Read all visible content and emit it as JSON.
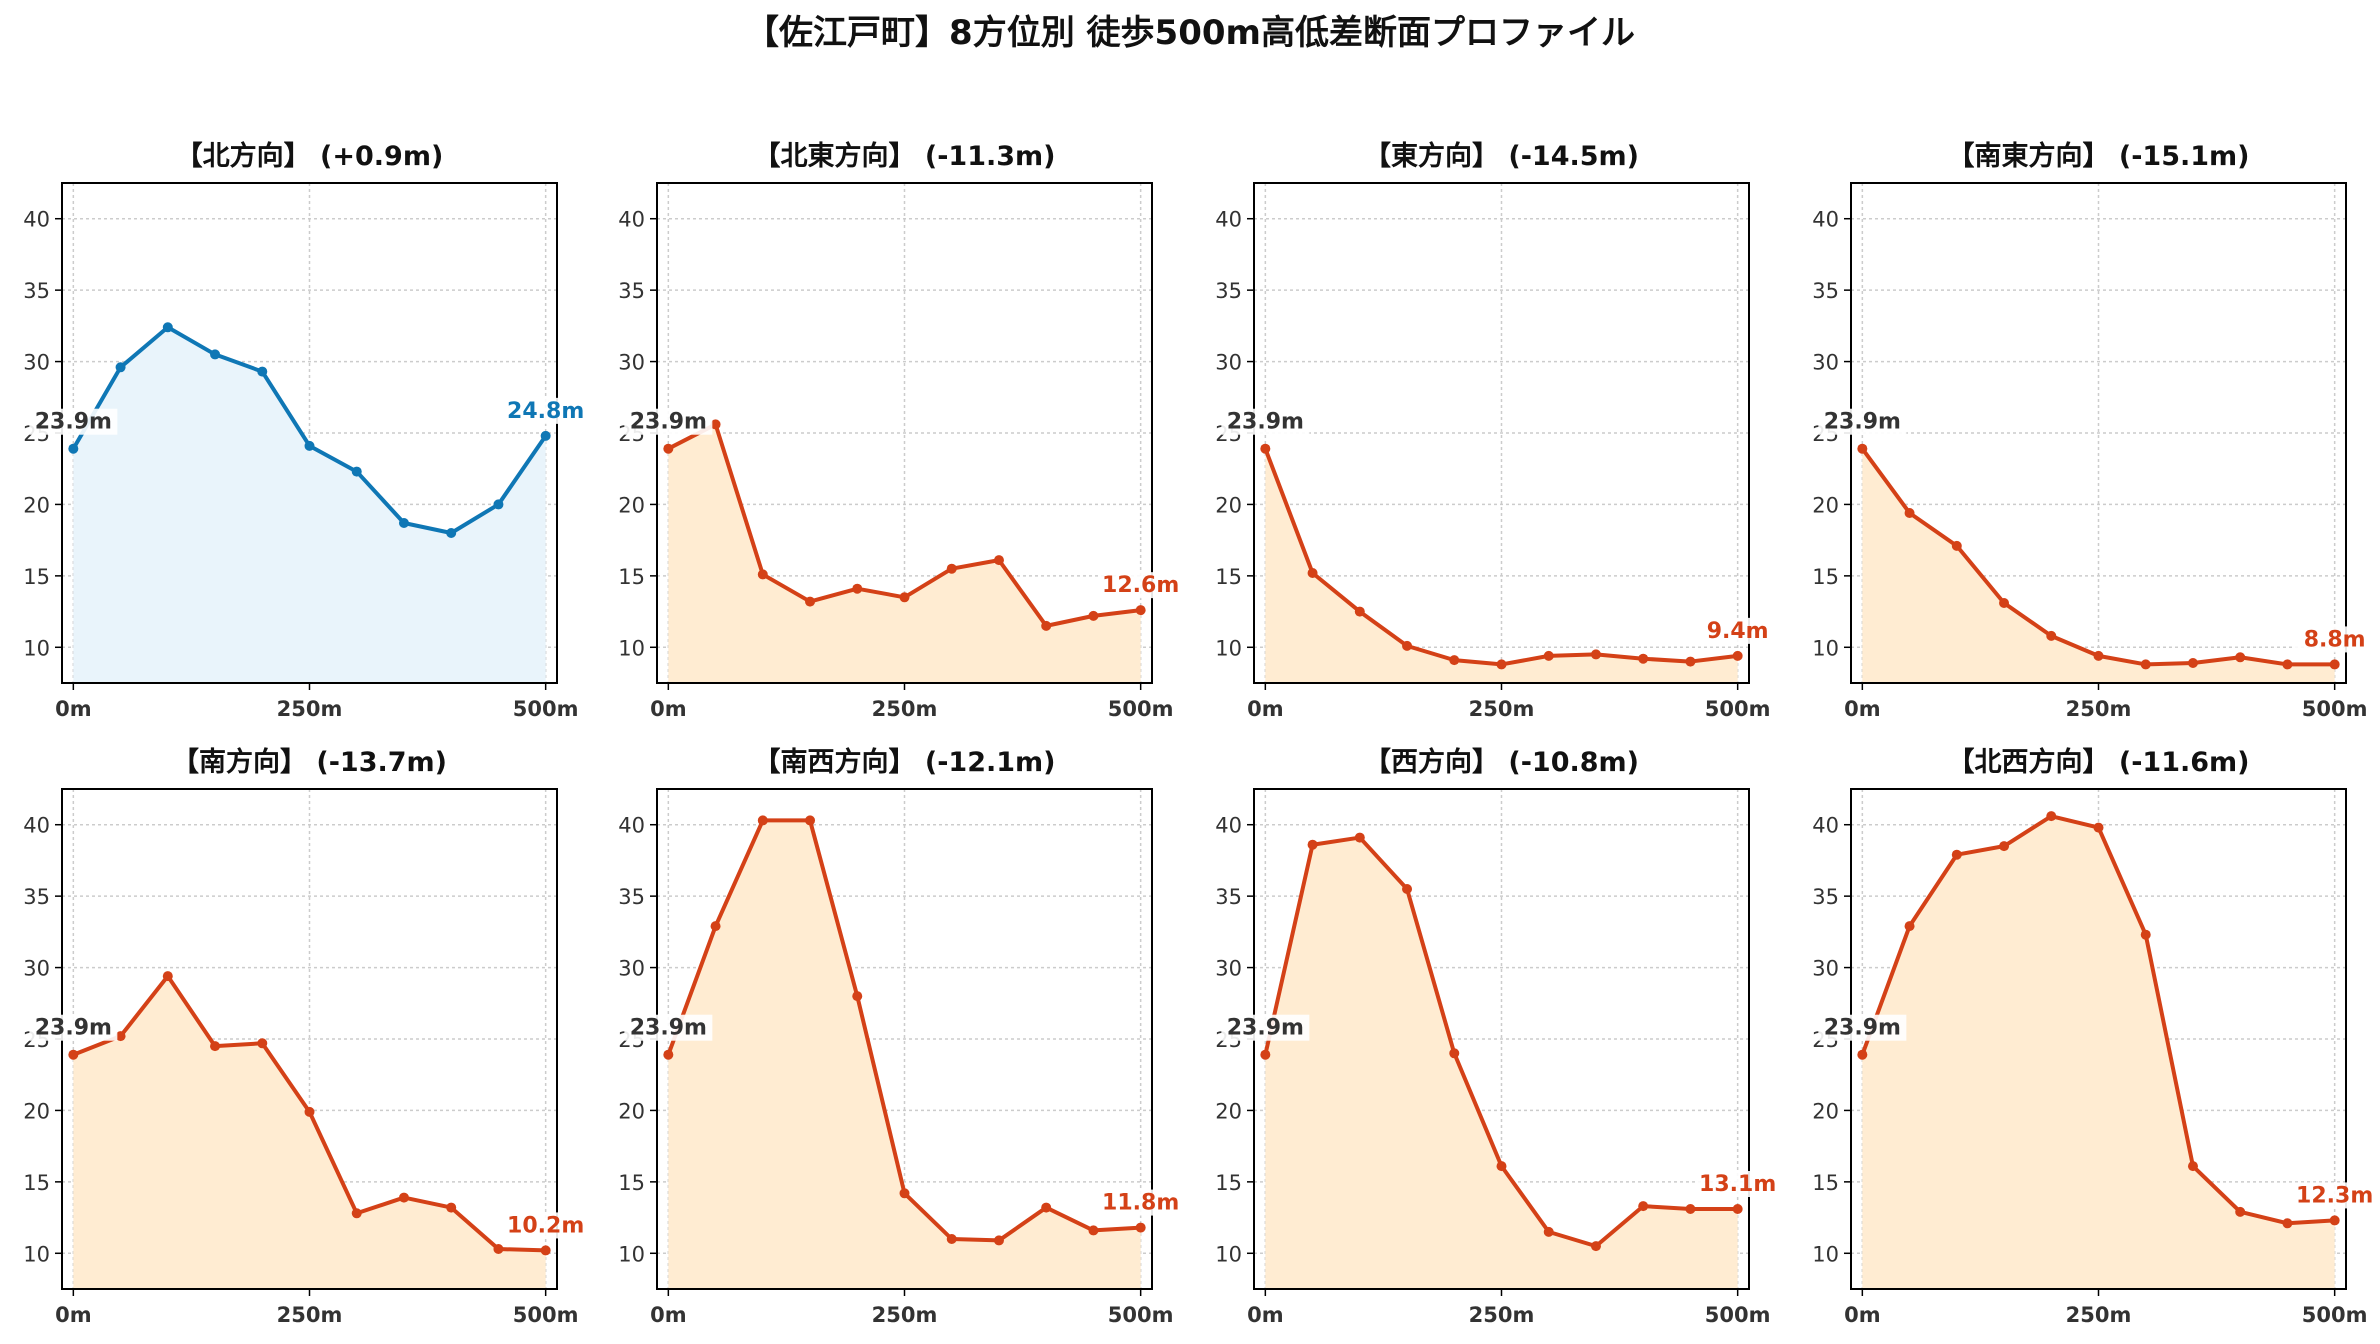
{
  "figure": {
    "title": "【佐江戸町】8方位別 徒歩500m高低差断面プロファイル"
  },
  "colors": {
    "up_line": "#0f77b5",
    "up_fill": "#e9f4fb",
    "down_line": "#d44117",
    "down_fill": "#ffecd2",
    "start_label": "#333333",
    "grid": "#cccccc",
    "tick_text": "#333333",
    "axis": "#000000"
  },
  "chart_data": [
    {
      "type": "area",
      "title": "【北方向】 (+0.9m)",
      "trend": "up",
      "x": [
        0,
        50,
        100,
        150,
        200,
        250,
        300,
        350,
        400,
        450,
        500
      ],
      "values": [
        23.9,
        29.6,
        32.4,
        30.5,
        29.3,
        24.1,
        22.3,
        18.7,
        18.0,
        20.0,
        24.8
      ],
      "start_label": "23.9m",
      "end_label": "24.8m",
      "xticks": [
        0,
        250,
        500
      ],
      "xtick_labels": [
        "0m",
        "250m",
        "500m"
      ],
      "yticks": [
        10,
        15,
        20,
        25,
        30,
        35,
        40
      ],
      "ylim": [
        7.5,
        42.5
      ],
      "xlim": [
        -12,
        512
      ],
      "grid": true
    },
    {
      "type": "area",
      "title": "【北東方向】 (-11.3m)",
      "trend": "down",
      "x": [
        0,
        50,
        100,
        150,
        200,
        250,
        300,
        350,
        400,
        450,
        500
      ],
      "values": [
        23.9,
        25.6,
        15.1,
        13.2,
        14.1,
        13.5,
        15.5,
        16.1,
        11.5,
        12.2,
        12.6
      ],
      "start_label": "23.9m",
      "end_label": "12.6m",
      "xticks": [
        0,
        250,
        500
      ],
      "xtick_labels": [
        "0m",
        "250m",
        "500m"
      ],
      "yticks": [
        10,
        15,
        20,
        25,
        30,
        35,
        40
      ],
      "ylim": [
        7.5,
        42.5
      ],
      "xlim": [
        -12,
        512
      ],
      "grid": true
    },
    {
      "type": "area",
      "title": "【東方向】 (-14.5m)",
      "trend": "down",
      "x": [
        0,
        50,
        100,
        150,
        200,
        250,
        300,
        350,
        400,
        450,
        500
      ],
      "values": [
        23.9,
        15.2,
        12.5,
        10.1,
        9.1,
        8.8,
        9.4,
        9.5,
        9.2,
        9.0,
        9.4
      ],
      "start_label": "23.9m",
      "end_label": "9.4m",
      "xticks": [
        0,
        250,
        500
      ],
      "xtick_labels": [
        "0m",
        "250m",
        "500m"
      ],
      "yticks": [
        10,
        15,
        20,
        25,
        30,
        35,
        40
      ],
      "ylim": [
        7.5,
        42.5
      ],
      "xlim": [
        -12,
        512
      ],
      "grid": true
    },
    {
      "type": "area",
      "title": "【南東方向】 (-15.1m)",
      "trend": "down",
      "x": [
        0,
        50,
        100,
        150,
        200,
        250,
        300,
        350,
        400,
        450,
        500
      ],
      "values": [
        23.9,
        19.4,
        17.1,
        13.1,
        10.8,
        9.4,
        8.8,
        8.9,
        9.3,
        8.8,
        8.8
      ],
      "start_label": "23.9m",
      "end_label": "8.8m",
      "xticks": [
        0,
        250,
        500
      ],
      "xtick_labels": [
        "0m",
        "250m",
        "500m"
      ],
      "yticks": [
        10,
        15,
        20,
        25,
        30,
        35,
        40
      ],
      "ylim": [
        7.5,
        42.5
      ],
      "xlim": [
        -12,
        512
      ],
      "grid": true
    },
    {
      "type": "area",
      "title": "【南方向】 (-13.7m)",
      "trend": "down",
      "x": [
        0,
        50,
        100,
        150,
        200,
        250,
        300,
        350,
        400,
        450,
        500
      ],
      "values": [
        23.9,
        25.2,
        29.4,
        24.5,
        24.7,
        19.9,
        12.8,
        13.9,
        13.2,
        10.3,
        10.2
      ],
      "start_label": "23.9m",
      "end_label": "10.2m",
      "xticks": [
        0,
        250,
        500
      ],
      "xtick_labels": [
        "0m",
        "250m",
        "500m"
      ],
      "yticks": [
        10,
        15,
        20,
        25,
        30,
        35,
        40
      ],
      "ylim": [
        7.5,
        42.5
      ],
      "xlim": [
        -12,
        512
      ],
      "grid": true
    },
    {
      "type": "area",
      "title": "【南西方向】 (-12.1m)",
      "trend": "down",
      "x": [
        0,
        50,
        100,
        150,
        200,
        250,
        300,
        350,
        400,
        450,
        500
      ],
      "values": [
        23.9,
        32.9,
        40.3,
        40.3,
        28.0,
        14.2,
        11.0,
        10.9,
        13.2,
        11.6,
        11.8
      ],
      "start_label": "23.9m",
      "end_label": "11.8m",
      "xticks": [
        0,
        250,
        500
      ],
      "xtick_labels": [
        "0m",
        "250m",
        "500m"
      ],
      "yticks": [
        10,
        15,
        20,
        25,
        30,
        35,
        40
      ],
      "ylim": [
        7.5,
        42.5
      ],
      "xlim": [
        -12,
        512
      ],
      "grid": true
    },
    {
      "type": "area",
      "title": "【西方向】 (-10.8m)",
      "trend": "down",
      "x": [
        0,
        50,
        100,
        150,
        200,
        250,
        300,
        350,
        400,
        450,
        500
      ],
      "values": [
        23.9,
        38.6,
        39.1,
        35.5,
        24.0,
        16.1,
        11.5,
        10.5,
        13.3,
        13.1,
        13.1
      ],
      "start_label": "23.9m",
      "end_label": "13.1m",
      "xticks": [
        0,
        250,
        500
      ],
      "xtick_labels": [
        "0m",
        "250m",
        "500m"
      ],
      "yticks": [
        10,
        15,
        20,
        25,
        30,
        35,
        40
      ],
      "ylim": [
        7.5,
        42.5
      ],
      "xlim": [
        -12,
        512
      ],
      "grid": true
    },
    {
      "type": "area",
      "title": "【北西方向】 (-11.6m)",
      "trend": "down",
      "x": [
        0,
        50,
        100,
        150,
        200,
        250,
        300,
        350,
        400,
        450,
        500
      ],
      "values": [
        23.9,
        32.9,
        37.9,
        38.5,
        40.6,
        39.8,
        32.3,
        16.1,
        12.9,
        12.1,
        12.3
      ],
      "start_label": "23.9m",
      "end_label": "12.3m",
      "xticks": [
        0,
        250,
        500
      ],
      "xtick_labels": [
        "0m",
        "250m",
        "500m"
      ],
      "yticks": [
        10,
        15,
        20,
        25,
        30,
        35,
        40
      ],
      "ylim": [
        7.5,
        42.5
      ],
      "xlim": [
        -12,
        512
      ],
      "grid": true
    }
  ]
}
